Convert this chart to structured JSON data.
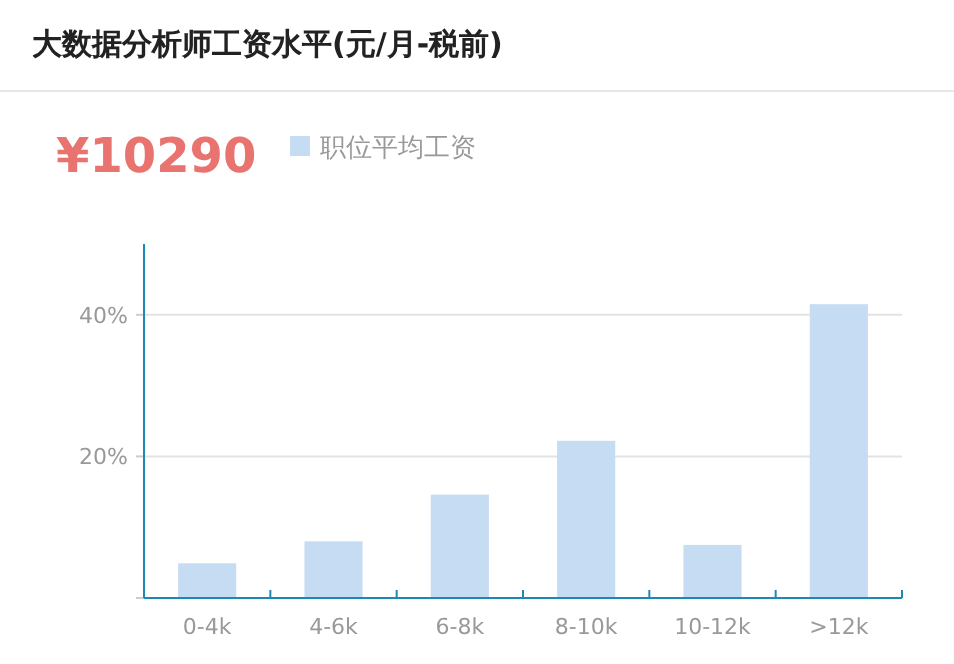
{
  "chart_data": {
    "type": "bar",
    "title": "大数据分析师工资水平(元/月-税前)",
    "annotations": [
      "¥10290"
    ],
    "categories": [
      "0-4k",
      "4-6k",
      "6-8k",
      "8-10k",
      "10-12k",
      ">12k"
    ],
    "series": [
      {
        "name": "职位平均工资",
        "color": "#c6dcf2",
        "values": [
          4.9,
          8.0,
          14.6,
          22.2,
          7.5,
          41.5
        ]
      }
    ],
    "ylim": [
      0,
      50
    ],
    "yticks": [
      {
        "value": 0,
        "label": null
      },
      {
        "value": 20,
        "label": "20%"
      },
      {
        "value": 40,
        "label": "40%"
      }
    ],
    "grid": "y",
    "legend": "top"
  }
}
